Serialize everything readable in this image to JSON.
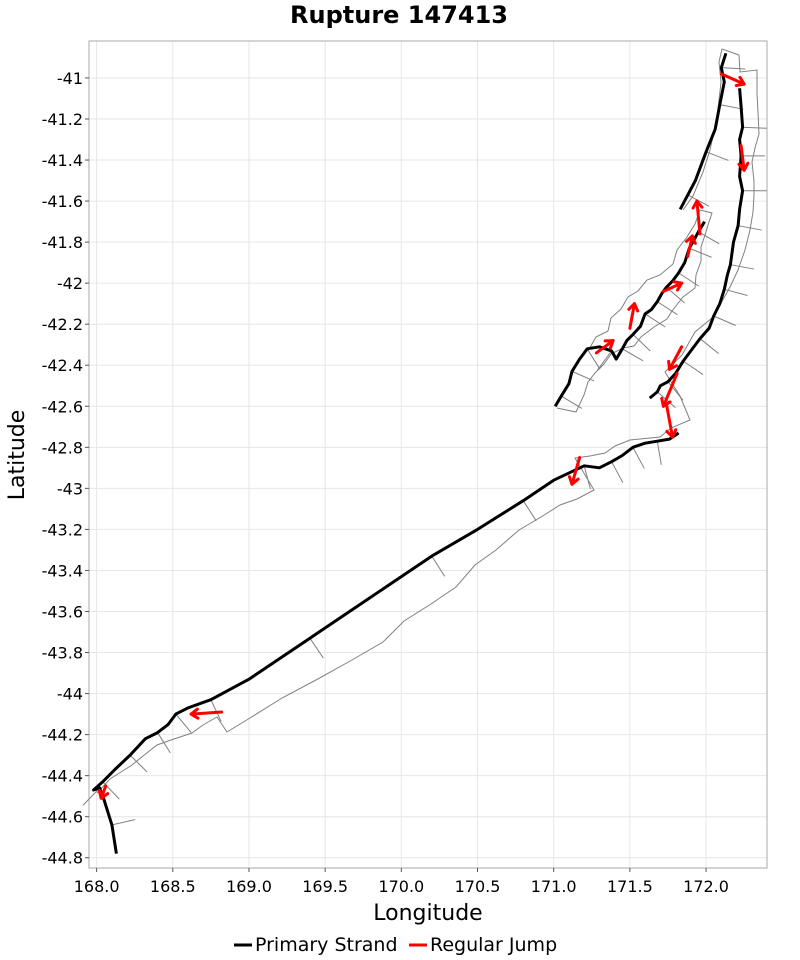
{
  "chart_data": {
    "type": "line",
    "title": "Rupture 147413",
    "xlabel": "Longitude",
    "ylabel": "Latitude",
    "xlim": [
      167.95,
      172.4
    ],
    "ylim": [
      -44.85,
      -40.82
    ],
    "grid": true,
    "legend_position": "bottom",
    "x_ticks": [
      "168.0",
      "168.5",
      "169.0",
      "169.5",
      "170.0",
      "170.5",
      "171.0",
      "171.5",
      "172.0"
    ],
    "y_ticks": [
      "-41",
      "-41.2",
      "-41.4",
      "-41.6",
      "-41.8",
      "-42",
      "-42.2",
      "-42.4",
      "-42.6",
      "-42.8",
      "-43",
      "-43.2",
      "-43.4",
      "-43.6",
      "-43.8",
      "-44",
      "-44.2",
      "-44.4",
      "-44.6",
      "-44.8"
    ],
    "legend": [
      {
        "label": "Primary Strand",
        "color": "#000000"
      },
      {
        "label": "Regular Jump",
        "color": "#ff0000"
      }
    ],
    "series": [
      {
        "name": "Primary Strand",
        "color": "#000000",
        "segments": [
          [
            [
              168.13,
              -44.78
            ],
            [
              168.1,
              -44.64
            ],
            [
              168.05,
              -44.52
            ],
            [
              168.02,
              -44.46
            ],
            [
              167.98,
              -44.47
            ],
            [
              168.04,
              -44.43
            ],
            [
              168.12,
              -44.37
            ],
            [
              168.22,
              -44.3
            ],
            [
              168.32,
              -44.22
            ],
            [
              168.4,
              -44.19
            ],
            [
              168.47,
              -44.15
            ],
            [
              168.52,
              -44.1
            ],
            [
              168.6,
              -44.07
            ],
            [
              168.75,
              -44.03
            ],
            [
              169.0,
              -43.93
            ],
            [
              169.4,
              -43.73
            ],
            [
              169.8,
              -43.53
            ],
            [
              170.2,
              -43.33
            ],
            [
              170.5,
              -43.2
            ],
            [
              170.8,
              -43.06
            ],
            [
              171.0,
              -42.96
            ],
            [
              171.2,
              -42.89
            ],
            [
              171.3,
              -42.9
            ],
            [
              171.38,
              -42.87
            ],
            [
              171.45,
              -42.84
            ],
            [
              171.52,
              -42.8
            ],
            [
              171.6,
              -42.78
            ],
            [
              171.68,
              -42.77
            ],
            [
              171.76,
              -42.76
            ],
            [
              171.82,
              -42.73
            ]
          ],
          [
            [
              171.01,
              -42.6
            ],
            [
              171.05,
              -42.55
            ],
            [
              171.1,
              -42.49
            ],
            [
              171.12,
              -42.43
            ],
            [
              171.17,
              -42.37
            ],
            [
              171.22,
              -42.32
            ],
            [
              171.3,
              -42.31
            ],
            [
              171.38,
              -42.33
            ],
            [
              171.41,
              -42.37
            ],
            [
              171.45,
              -42.32
            ],
            [
              171.48,
              -42.28
            ],
            [
              171.52,
              -42.25
            ],
            [
              171.57,
              -42.21
            ],
            [
              171.6,
              -42.15
            ],
            [
              171.64,
              -42.13
            ],
            [
              171.68,
              -42.09
            ],
            [
              171.71,
              -42.05
            ],
            [
              171.74,
              -42.02
            ],
            [
              171.78,
              -41.99
            ],
            [
              171.82,
              -41.95
            ],
            [
              171.86,
              -41.9
            ],
            [
              171.89,
              -41.83
            ],
            [
              171.92,
              -41.79
            ],
            [
              171.95,
              -41.75
            ],
            [
              171.99,
              -41.7
            ]
          ],
          [
            [
              171.83,
              -41.64
            ],
            [
              171.88,
              -41.57
            ],
            [
              171.93,
              -41.5
            ],
            [
              172.0,
              -41.36
            ],
            [
              172.06,
              -41.25
            ],
            [
              172.09,
              -41.13
            ],
            [
              172.12,
              -41.02
            ],
            [
              172.1,
              -40.95
            ],
            [
              172.13,
              -40.88
            ]
          ],
          [
            [
              171.63,
              -42.56
            ],
            [
              171.68,
              -42.53
            ],
            [
              171.7,
              -42.5
            ],
            [
              171.75,
              -42.48
            ],
            [
              171.8,
              -42.44
            ],
            [
              171.85,
              -42.38
            ],
            [
              171.9,
              -42.33
            ],
            [
              171.96,
              -42.27
            ],
            [
              172.02,
              -42.22
            ],
            [
              172.05,
              -42.16
            ],
            [
              172.09,
              -42.1
            ],
            [
              172.12,
              -42.03
            ],
            [
              172.14,
              -41.96
            ],
            [
              172.16,
              -41.91
            ],
            [
              172.18,
              -41.8
            ],
            [
              172.21,
              -41.72
            ],
            [
              172.22,
              -41.64
            ],
            [
              172.24,
              -41.55
            ],
            [
              172.22,
              -41.48
            ],
            [
              172.23,
              -41.38
            ],
            [
              172.22,
              -41.3
            ],
            [
              172.24,
              -41.24
            ],
            [
              172.23,
              -41.14
            ],
            [
              172.22,
              -41.05
            ]
          ]
        ]
      },
      {
        "name": "Regular Jump",
        "color": "#ff0000",
        "arrows": [
          [
            [
              172.1,
              -40.98
            ],
            [
              172.25,
              -41.03
            ]
          ],
          [
            [
              172.23,
              -41.33
            ],
            [
              172.25,
              -41.45
            ]
          ],
          [
            [
              171.96,
              -41.76
            ],
            [
              171.94,
              -41.6
            ]
          ],
          [
            [
              171.88,
              -41.87
            ],
            [
              171.91,
              -41.77
            ]
          ],
          [
            [
              171.72,
              -42.04
            ],
            [
              171.84,
              -42.0
            ]
          ],
          [
            [
              171.5,
              -42.22
            ],
            [
              171.53,
              -42.1
            ]
          ],
          [
            [
              171.28,
              -42.34
            ],
            [
              171.39,
              -42.28
            ]
          ],
          [
            [
              171.84,
              -42.31
            ],
            [
              171.76,
              -42.42
            ]
          ],
          [
            [
              171.81,
              -42.44
            ],
            [
              171.72,
              -42.6
            ]
          ],
          [
            [
              171.74,
              -42.59
            ],
            [
              171.78,
              -42.75
            ]
          ],
          [
            [
              171.17,
              -42.85
            ],
            [
              171.12,
              -42.98
            ]
          ],
          [
            [
              168.82,
              -44.09
            ],
            [
              168.62,
              -44.1
            ]
          ],
          [
            [
              168.06,
              -44.45
            ],
            [
              168.03,
              -44.51
            ]
          ]
        ]
      }
    ]
  }
}
